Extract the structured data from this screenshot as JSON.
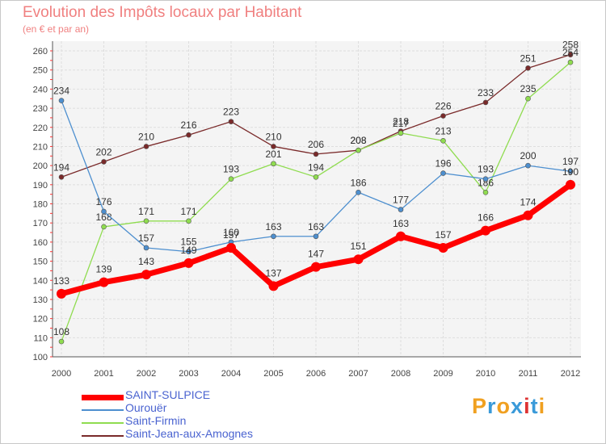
{
  "header": {
    "title": "Evolution des Impôts locaux par Habitant",
    "subtitle": "(en € et par an)"
  },
  "logo": {
    "text": "Proxiti",
    "letters": [
      "P",
      "r",
      "o",
      "x",
      "i",
      "t",
      "i"
    ],
    "colors": [
      "#f0a020",
      "#3a9ad9",
      "#f0a020",
      "#3a9ad9",
      "#d33",
      "#3a9ad9",
      "#f0a020"
    ]
  },
  "chart_data": {
    "type": "line",
    "title": "Evolution des Impôts locaux par Habitant",
    "subtitle": "(en € et par an)",
    "xlabel": "",
    "ylabel": "",
    "categories": [
      "2000",
      "2001",
      "2002",
      "2003",
      "2004",
      "2005",
      "2006",
      "2007",
      "2008",
      "2009",
      "2010",
      "2011",
      "2012"
    ],
    "ylim": [
      100,
      260
    ],
    "yticks": [
      100,
      110,
      120,
      130,
      140,
      150,
      160,
      170,
      180,
      190,
      200,
      210,
      220,
      230,
      240,
      250,
      260
    ],
    "grid": true,
    "legend_position": "bottom-left",
    "series": [
      {
        "name": "Saint-Jean-aux-Amognes",
        "color": "#7a2a2a",
        "values": [
          194,
          202,
          210,
          216,
          223,
          210,
          206,
          208,
          218,
          226,
          233,
          251,
          258
        ]
      },
      {
        "name": "Saint-Firmin",
        "color": "#8fdc4f",
        "values": [
          108,
          168,
          171,
          171,
          193,
          201,
          194,
          208,
          217,
          213,
          186,
          235,
          254
        ]
      },
      {
        "name": "Ourouër",
        "color": "#4d8fcf",
        "values": [
          234,
          176,
          157,
          155,
          160,
          163,
          163,
          186,
          177,
          196,
          193,
          200,
          197
        ]
      },
      {
        "name": "SAINT-SULPICE",
        "color": "#ff0000",
        "values": [
          133,
          139,
          143,
          149,
          157,
          137,
          147,
          151,
          163,
          157,
          166,
          174,
          190
        ]
      }
    ],
    "legend": [
      "SAINT-SULPICE",
      "Ourouër",
      "Saint-Firmin",
      "Saint-Jean-aux-Amognes"
    ]
  }
}
